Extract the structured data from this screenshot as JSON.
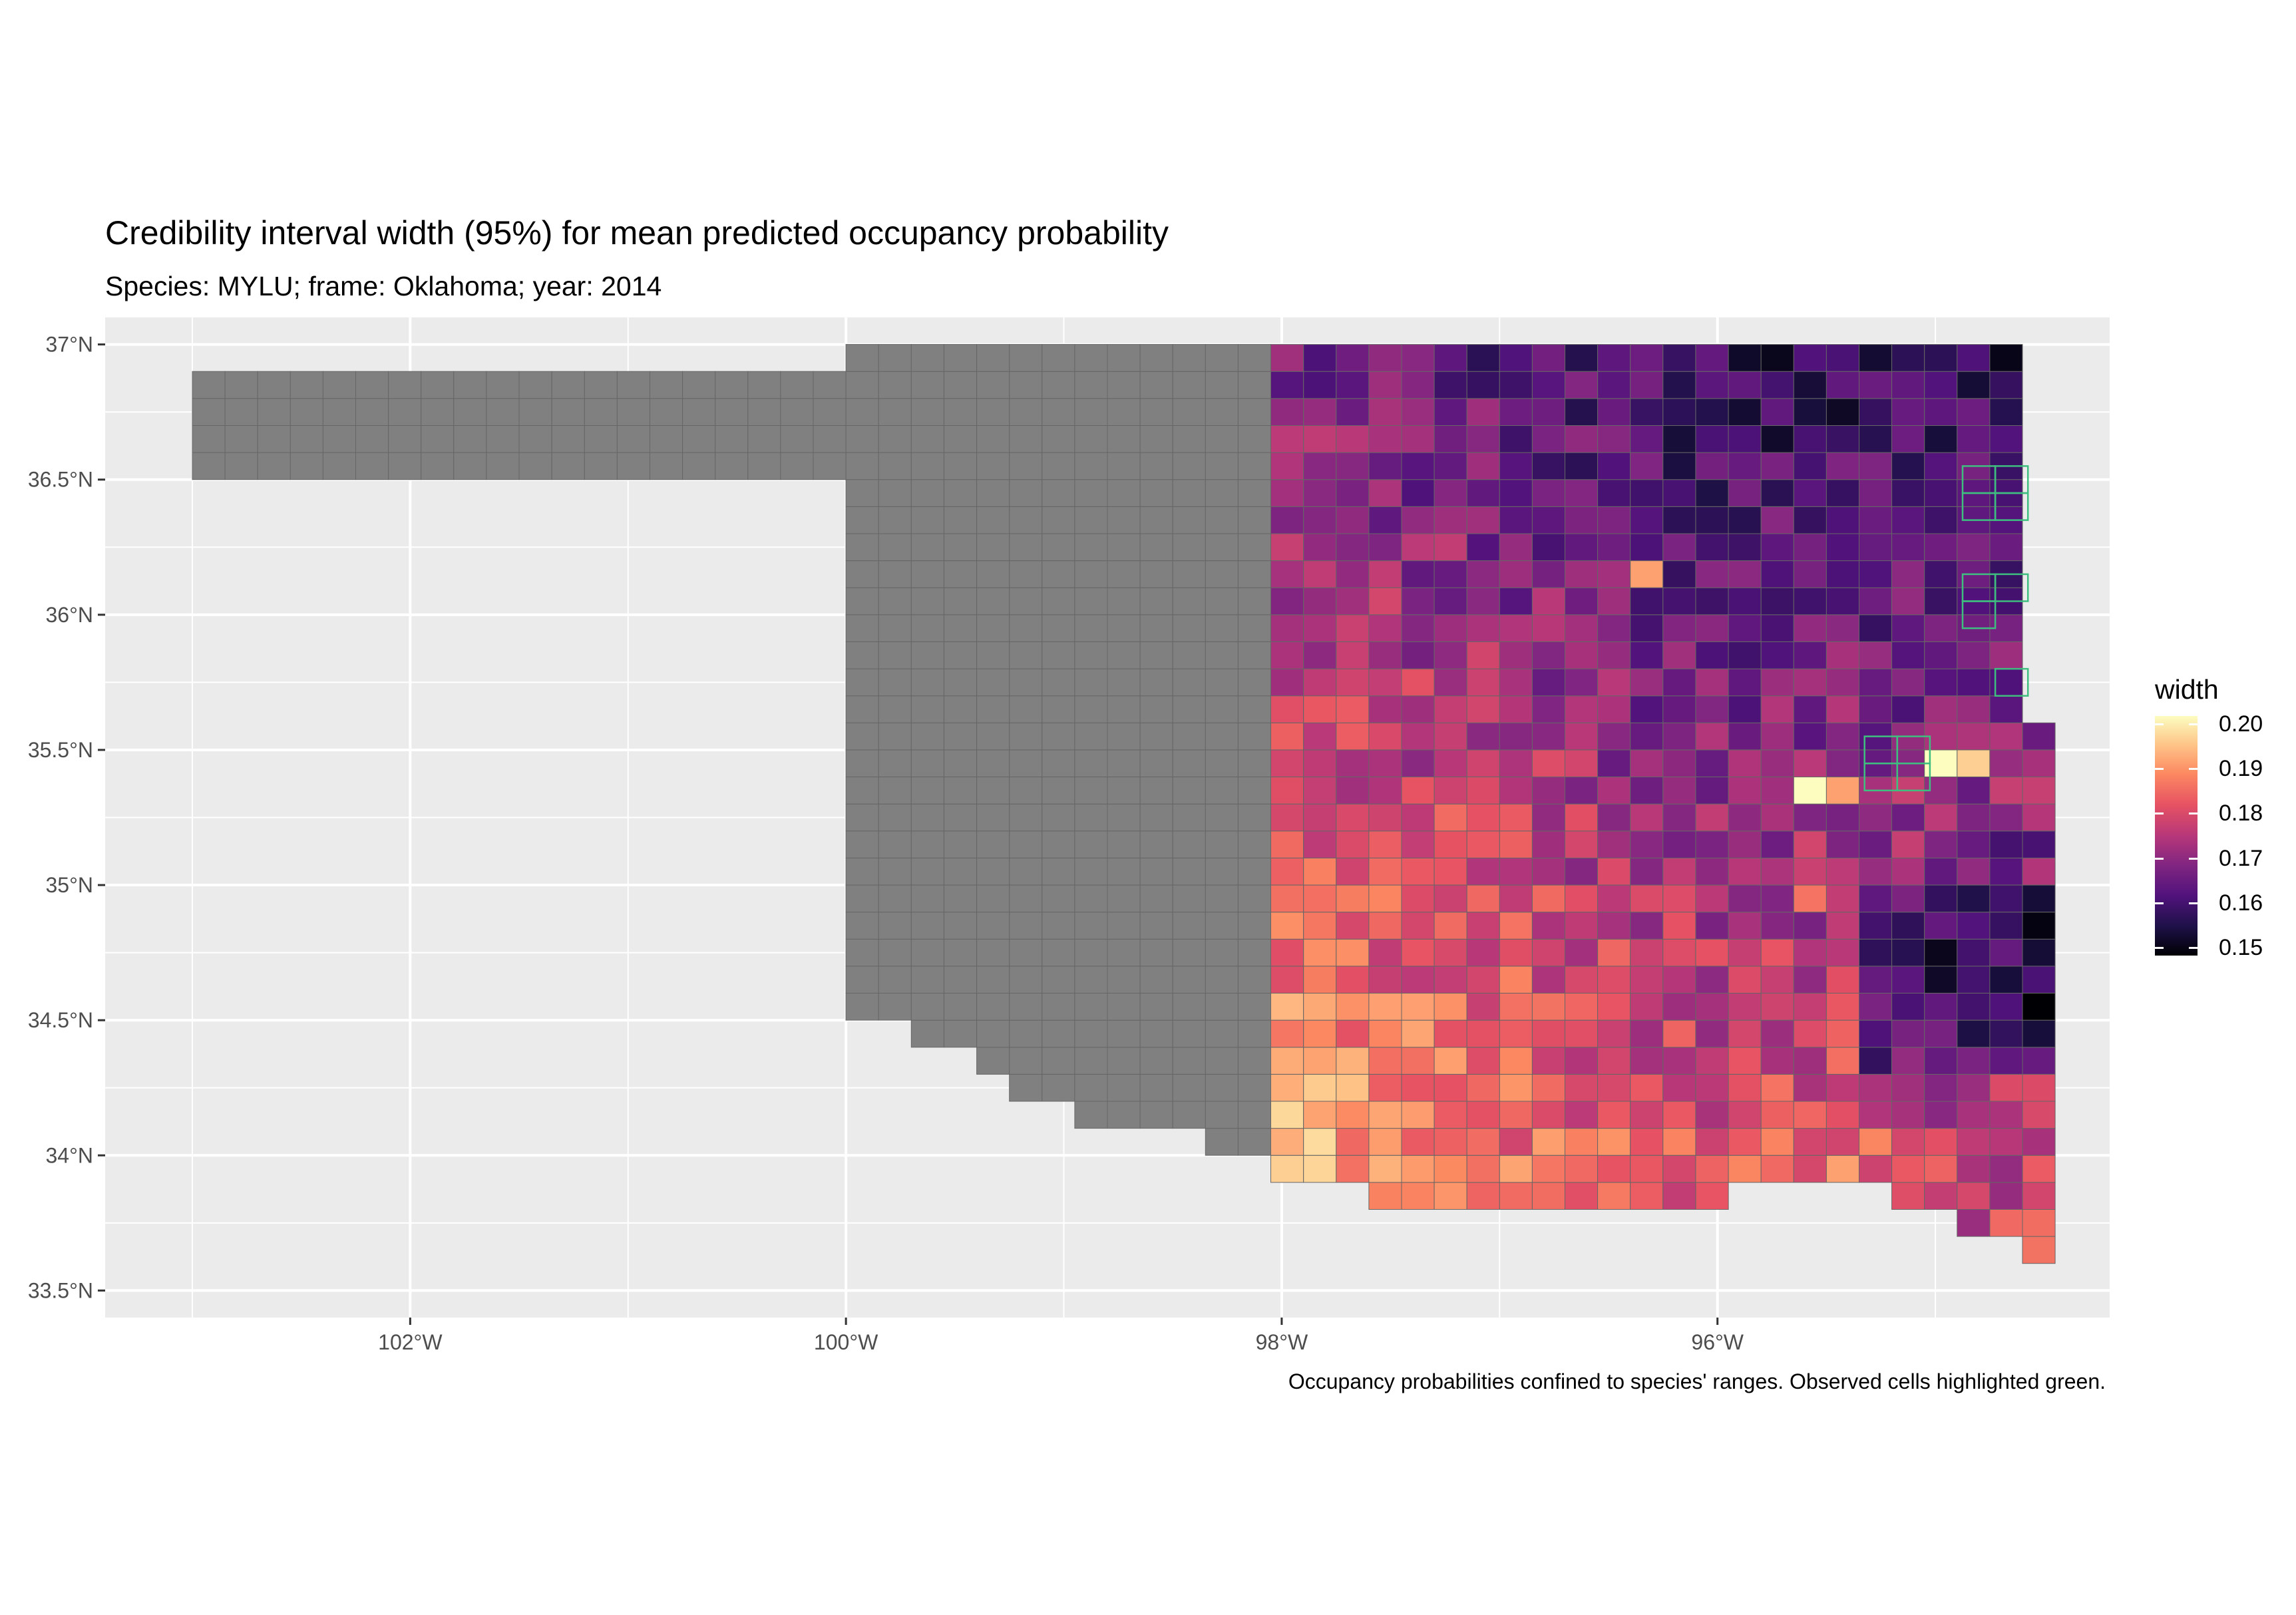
{
  "title": "Credibility interval width (95%) for mean predicted occupancy probability",
  "subtitle": "Species: MYLU; frame: Oklahoma; year: 2014",
  "caption": "Occupancy probabilities confined to species' ranges. Observed cells highlighted green.",
  "legend": {
    "title": "width",
    "labels": [
      "0.20",
      "0.19",
      "0.18",
      "0.17",
      "0.16",
      "0.15"
    ]
  },
  "colors": {
    "panel_background": "#ebebeb",
    "gridline": "#ffffff",
    "out_of_range_cell": "#808080",
    "observed_cell_outline": "#3fbf7f",
    "scale": "magma"
  },
  "chart_data": {
    "type": "heatmap",
    "projection": "geographic grid map of Oklahoma",
    "x_axis": {
      "ticks": [
        "102°W",
        "100°W",
        "98°W",
        "96°W"
      ],
      "lim": [
        -103.4,
        -94.2
      ]
    },
    "y_axis": {
      "ticks": [
        "37°N",
        "36.5°N",
        "36°N",
        "35.5°N",
        "35°N",
        "34.5°N",
        "34°N",
        "33.5°N"
      ],
      "lim": [
        33.4,
        37.1
      ]
    },
    "value_name": "width",
    "value_range": [
      0.15,
      0.2
    ],
    "range_boundary_longitude": -98.05,
    "notable_cells": [
      {
        "lon": -96.3,
        "lat": 36.15,
        "width": 0.19
      },
      {
        "lon": -95.55,
        "lat": 35.32,
        "width": 0.2
      },
      {
        "lon": -95.4,
        "lat": 35.32,
        "width": 0.19
      },
      {
        "lon": -94.9,
        "lat": 35.41,
        "width": 0.2
      },
      {
        "lon": -94.75,
        "lat": 35.41,
        "width": 0.195
      },
      {
        "lon": -95.55,
        "lat": 34.96,
        "width": 0.185
      },
      {
        "lon": -95.4,
        "lat": 33.95,
        "width": 0.19
      },
      {
        "lon": -94.55,
        "lat": 34.53,
        "width": 0.15
      },
      {
        "lon": -94.7,
        "lat": 36.95,
        "width": 0.152
      }
    ],
    "observed_cells": [
      {
        "lon": -94.8,
        "lat": 36.5
      },
      {
        "lon": -94.65,
        "lat": 36.5
      },
      {
        "lon": -94.8,
        "lat": 36.4
      },
      {
        "lon": -94.65,
        "lat": 36.4
      },
      {
        "lon": -94.8,
        "lat": 36.1
      },
      {
        "lon": -94.65,
        "lat": 36.1
      },
      {
        "lon": -94.8,
        "lat": 36.0
      },
      {
        "lon": -94.65,
        "lat": 35.75
      },
      {
        "lon": -95.25,
        "lat": 35.5
      },
      {
        "lon": -95.1,
        "lat": 35.5
      },
      {
        "lon": -95.25,
        "lat": 35.4
      },
      {
        "lon": -95.1,
        "lat": 35.4
      }
    ]
  }
}
